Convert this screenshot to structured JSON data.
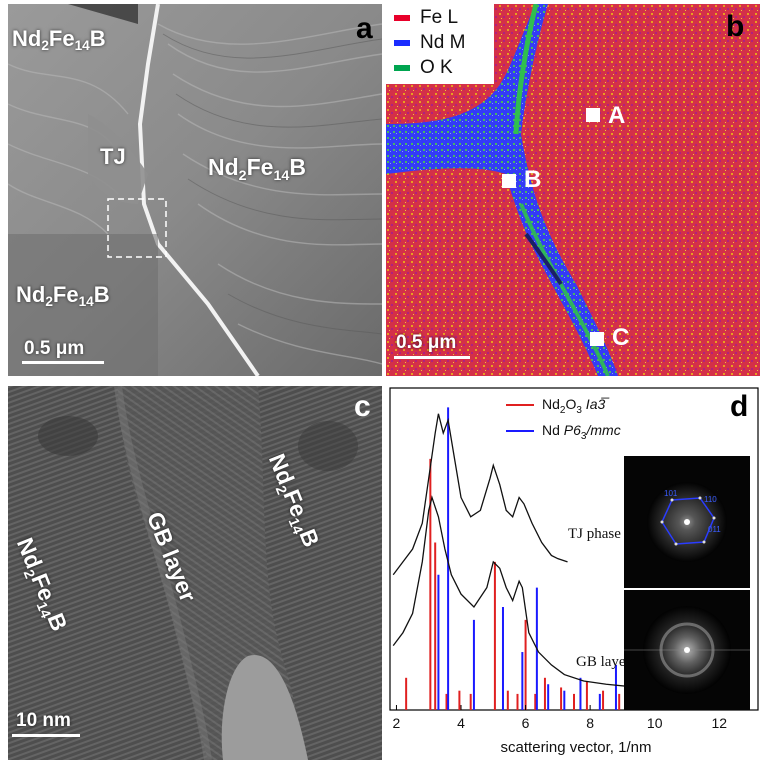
{
  "panels": {
    "a": {
      "letter": "a",
      "labels": {
        "top_left": [
          "Nd",
          "2",
          "Fe",
          "14",
          "B"
        ],
        "right": [
          "Nd",
          "2",
          "Fe",
          "14",
          "B"
        ],
        "bottom_left": [
          "Nd",
          "2",
          "Fe",
          "14",
          "B"
        ],
        "tj": "TJ"
      },
      "scale_bar": "0.5 μm"
    },
    "b": {
      "letter": "b",
      "legend": [
        {
          "label": "Fe L",
          "color": "#e8002a"
        },
        {
          "label": "Nd M",
          "color": "#1a2cff"
        },
        {
          "label": "O K",
          "color": "#00a550"
        }
      ],
      "points": [
        "A",
        "B",
        "C"
      ],
      "scale_bar": "0.5 μm"
    },
    "c": {
      "letter": "c",
      "labels": {
        "gb": "GB layer",
        "right": [
          "Nd",
          "2",
          "Fe",
          "14",
          "B"
        ],
        "left": [
          "Nd",
          "2",
          "Fe",
          "14",
          "B"
        ]
      },
      "scale_bar": "10 nm"
    },
    "d": {
      "letter": "d",
      "legend": [
        {
          "label_main": "Nd",
          "label_parts": [
            "2",
            "O",
            "3"
          ],
          "label_tail": " Ia3̅",
          "color": "#e02020"
        },
        {
          "label_main": "Nd ",
          "label_parts": [
            "P6",
            "3"
          ],
          "label_tail": "/mmc",
          "color": "#1a1aff"
        }
      ],
      "curve_labels": [
        "TJ phase",
        "GB layer"
      ],
      "fft_labels": [
        "101",
        "110",
        "011"
      ]
    }
  },
  "chart_data": {
    "type": "line",
    "xlabel": "scattering vector, 1/nm",
    "xlim": [
      1.8,
      13.2
    ],
    "x_ticks": [
      2,
      4,
      6,
      8,
      10,
      12
    ],
    "series": [
      {
        "name": "TJ phase",
        "x": [
          1.9,
          2.2,
          2.5,
          2.8,
          3.0,
          3.2,
          3.3,
          3.45,
          3.6,
          3.8,
          4.0,
          4.3,
          4.6,
          4.9,
          5.0,
          5.2,
          5.4,
          5.6,
          5.8,
          5.95,
          6.2,
          6.5,
          6.8,
          7.0,
          7.3
        ],
        "y": [
          0.42,
          0.46,
          0.5,
          0.58,
          0.72,
          0.86,
          0.92,
          0.86,
          0.9,
          0.78,
          0.66,
          0.6,
          0.62,
          0.72,
          0.76,
          0.7,
          0.62,
          0.6,
          0.66,
          0.64,
          0.58,
          0.52,
          0.48,
          0.47,
          0.46
        ]
      },
      {
        "name": "GB layer",
        "x": [
          1.9,
          2.2,
          2.5,
          2.8,
          3.0,
          3.1,
          3.3,
          3.5,
          3.7,
          4.0,
          4.4,
          4.8,
          5.0,
          5.2,
          5.4,
          5.6,
          5.8,
          5.9,
          6.1,
          6.4,
          6.8,
          7.2,
          7.8,
          8.5,
          9.5,
          10.5
        ],
        "y": [
          0.2,
          0.24,
          0.3,
          0.46,
          0.62,
          0.66,
          0.6,
          0.5,
          0.42,
          0.36,
          0.32,
          0.38,
          0.46,
          0.44,
          0.38,
          0.34,
          0.4,
          0.38,
          0.24,
          0.18,
          0.14,
          0.11,
          0.09,
          0.08,
          0.07,
          0.06
        ]
      }
    ],
    "reference_peaks": {
      "Nd2O3": {
        "color": "#e02020",
        "x": [
          2.3,
          3.05,
          3.2,
          3.55,
          3.95,
          4.3,
          5.05,
          5.45,
          5.75,
          6.0,
          6.3,
          6.6,
          7.1,
          7.5,
          7.9,
          8.4,
          8.9,
          9.3,
          9.9,
          10.5,
          11.2,
          12.0,
          12.7
        ],
        "h": [
          0.1,
          0.78,
          0.52,
          0.05,
          0.06,
          0.05,
          0.46,
          0.06,
          0.05,
          0.28,
          0.05,
          0.1,
          0.07,
          0.05,
          0.09,
          0.06,
          0.05,
          0.05,
          0.04,
          0.05,
          0.04,
          0.04,
          0.04
        ]
      },
      "Nd": {
        "color": "#1a1aff",
        "x": [
          3.3,
          3.6,
          4.4,
          5.3,
          5.9,
          6.35,
          6.7,
          7.2,
          7.7,
          8.3,
          8.8,
          9.4,
          10.1,
          10.8,
          11.6,
          12.5
        ],
        "h": [
          0.42,
          0.94,
          0.28,
          0.32,
          0.18,
          0.38,
          0.08,
          0.06,
          0.1,
          0.05,
          0.14,
          0.04,
          0.05,
          0.05,
          0.04,
          0.04
        ]
      }
    }
  }
}
